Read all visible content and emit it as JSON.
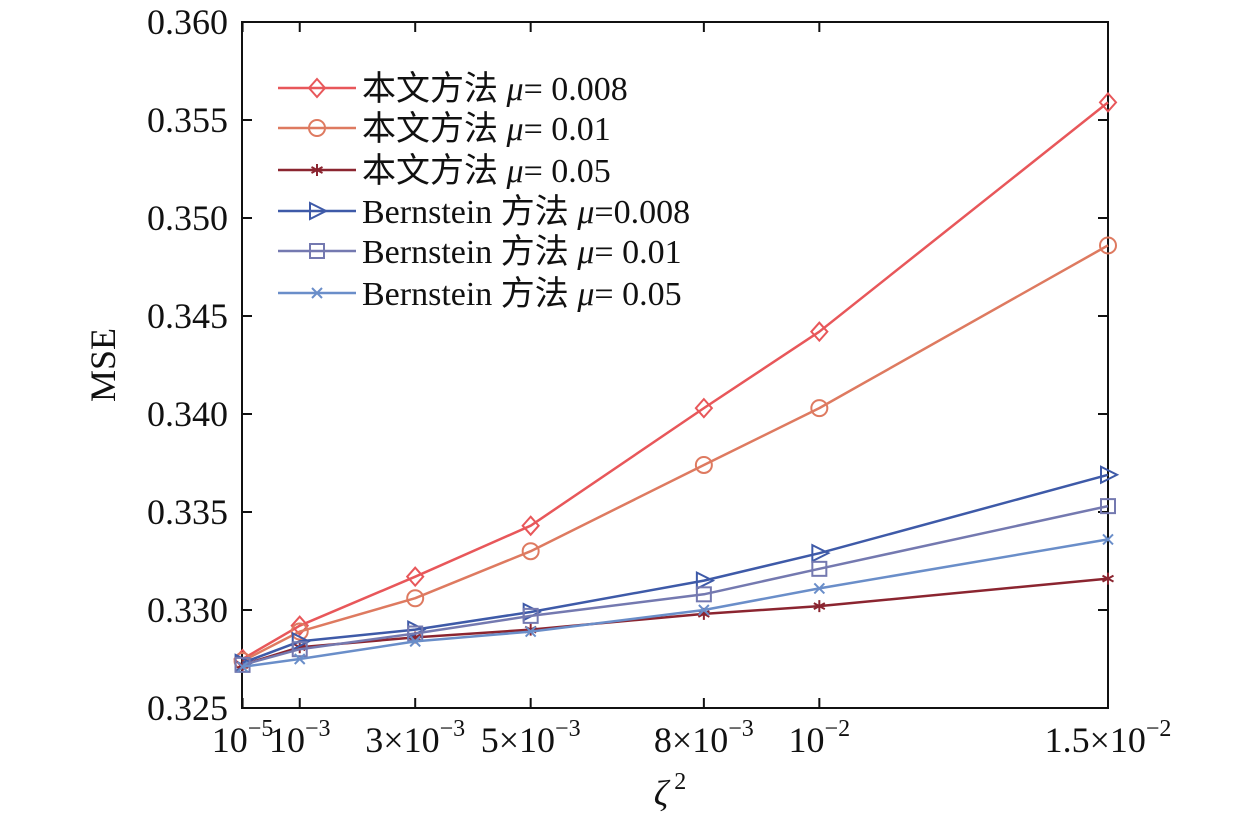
{
  "chart_data": {
    "type": "line",
    "title": "",
    "xlabel": "ζ",
    "xlabel_sup": "2",
    "ylabel": "MSE",
    "x": [
      1e-05,
      0.001,
      0.003,
      0.005,
      0.008,
      0.01,
      0.015
    ],
    "xticks": [
      {
        "value": 1e-05,
        "base": "10",
        "exp": "−5"
      },
      {
        "value": 0.001,
        "base": "10",
        "exp": "−3"
      },
      {
        "value": 0.003,
        "base": "3×10",
        "exp": "−3"
      },
      {
        "value": 0.005,
        "base": "5×10",
        "exp": "−3"
      },
      {
        "value": 0.008,
        "base": "8×10",
        "exp": "−3"
      },
      {
        "value": 0.01,
        "base": "10",
        "exp": "−2"
      },
      {
        "value": 0.015,
        "base": "1.5×10",
        "exp": "−2"
      }
    ],
    "ylim": [
      0.325,
      0.36
    ],
    "yticks": [
      "0.325",
      "0.330",
      "0.335",
      "0.340",
      "0.345",
      "0.350",
      "0.355",
      "0.360"
    ],
    "grid": false,
    "legend_position": "top-left",
    "series": [
      {
        "name": "本文方法 μ= 0.008",
        "method": "本文方法",
        "mu_text": "= 0.008",
        "color": "#e8575a",
        "marker": "diamond",
        "values": [
          0.3275,
          0.3292,
          0.3317,
          0.3343,
          0.3403,
          0.3442,
          0.3559
        ]
      },
      {
        "name": "本文方法 μ= 0.01",
        "method": "本文方法",
        "mu_text": "= 0.01",
        "color": "#de7a60",
        "marker": "circle",
        "values": [
          0.3274,
          0.3289,
          0.3306,
          0.333,
          0.3374,
          0.3403,
          0.3486
        ]
      },
      {
        "name": "本文方法 μ= 0.05",
        "method": "本文方法",
        "mu_text": "= 0.05",
        "color": "#8b2530",
        "marker": "asterisk",
        "values": [
          0.3272,
          0.3281,
          0.3286,
          0.329,
          0.3298,
          0.3302,
          0.3316
        ]
      },
      {
        "name": "Bernstein 方法 μ=0.008",
        "method": "Bernstein 方法",
        "mu_text": "=0.008",
        "color": "#3e5aa8",
        "marker": "triangle-right",
        "values": [
          0.3273,
          0.3284,
          0.329,
          0.3299,
          0.3315,
          0.3329,
          0.3369
        ]
      },
      {
        "name": "Bernstein 方法 μ= 0.01",
        "method": "Bernstein 方法",
        "mu_text": "= 0.01",
        "color": "#7479b0",
        "marker": "square",
        "values": [
          0.3272,
          0.328,
          0.3288,
          0.3297,
          0.3308,
          0.3321,
          0.3353
        ]
      },
      {
        "name": "Bernstein 方法 μ= 0.05",
        "method": "Bernstein 方法",
        "mu_text": "= 0.05",
        "color": "#6a8ec9",
        "marker": "x",
        "values": [
          0.3271,
          0.3275,
          0.3284,
          0.3289,
          0.33,
          0.3311,
          0.3336
        ]
      }
    ]
  }
}
